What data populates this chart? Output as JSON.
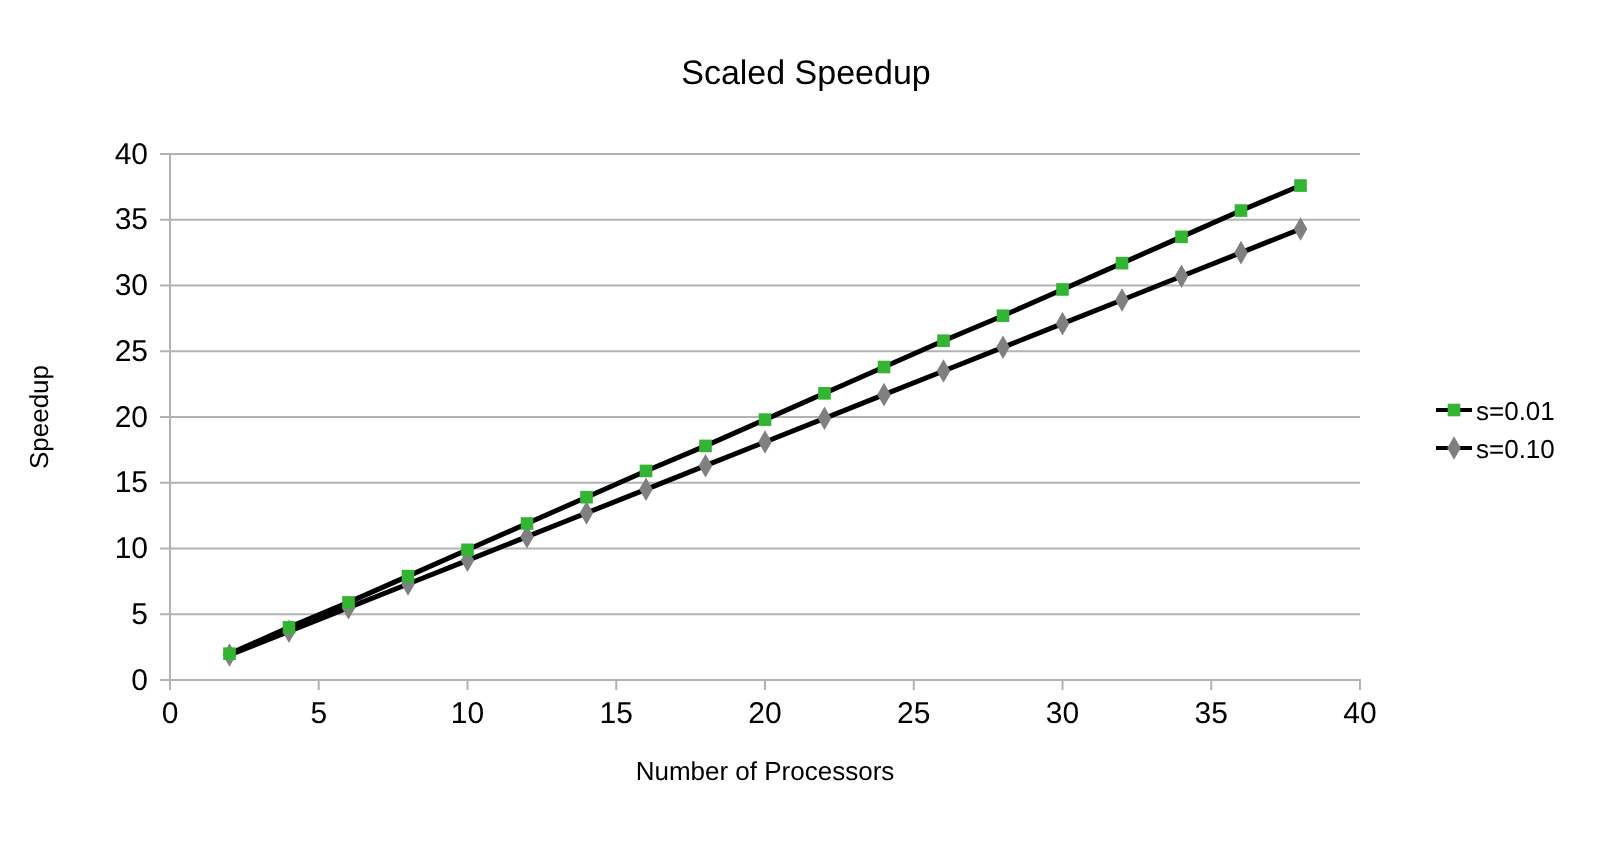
{
  "chart_data": {
    "type": "line",
    "title": "Scaled Speedup",
    "xlabel": "Number of Processors",
    "ylabel": "Speedup",
    "x": [
      2,
      4,
      6,
      8,
      10,
      12,
      14,
      16,
      18,
      20,
      22,
      24,
      26,
      28,
      30,
      32,
      34,
      36,
      38
    ],
    "series": [
      {
        "name": "s=0.01",
        "color": "#33b533",
        "marker": "square",
        "values": [
          2.0,
          4.0,
          5.9,
          7.9,
          9.9,
          11.9,
          13.9,
          15.9,
          17.8,
          19.8,
          21.8,
          23.8,
          25.8,
          27.7,
          29.7,
          31.7,
          33.7,
          35.7,
          37.6
        ]
      },
      {
        "name": "s=0.10",
        "color": "#808080",
        "marker": "diamond",
        "values": [
          1.9,
          3.7,
          5.5,
          7.3,
          9.1,
          10.9,
          12.7,
          14.5,
          16.3,
          18.1,
          19.9,
          21.7,
          23.5,
          25.3,
          27.1,
          28.9,
          30.7,
          32.5,
          34.3
        ]
      }
    ],
    "xlim": [
      0,
      40
    ],
    "xticks": [
      0,
      5,
      10,
      15,
      20,
      25,
      30,
      35,
      40
    ],
    "ylim": [
      0,
      40
    ],
    "yticks": [
      0,
      5,
      10,
      15,
      20,
      25,
      30,
      35,
      40
    ],
    "grid": "y",
    "legend": "right"
  }
}
